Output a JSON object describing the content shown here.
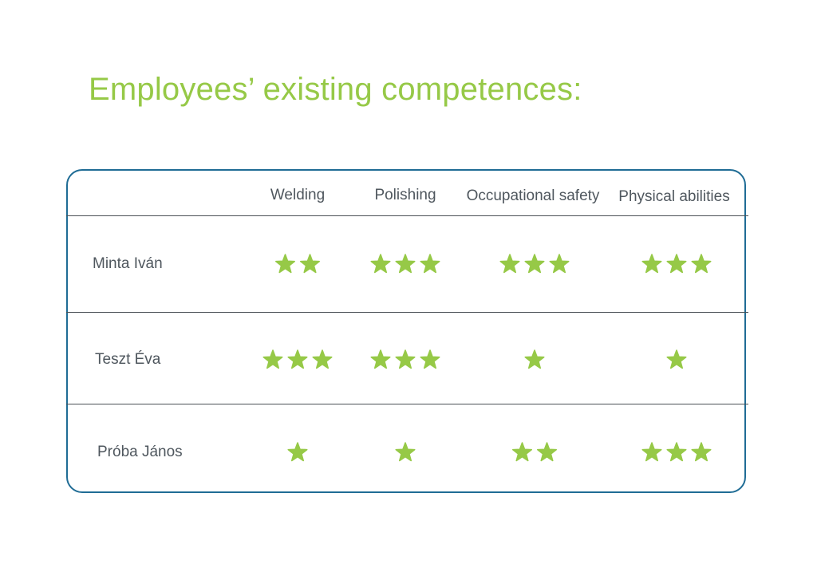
{
  "title": "Employees’ existing competences:",
  "star_color": "#96c947",
  "frame_color": "#1f6c95",
  "columns": [
    {
      "label": "Welding"
    },
    {
      "label": "Polishing"
    },
    {
      "label": "Occupational safety"
    },
    {
      "label": "Physical abilities"
    }
  ],
  "employees": [
    {
      "name": "Minta Iván",
      "ratings": [
        2,
        3,
        3,
        3
      ]
    },
    {
      "name": "Teszt Éva",
      "ratings": [
        3,
        3,
        1,
        1
      ]
    },
    {
      "name": "Próba János",
      "ratings": [
        1,
        1,
        2,
        3
      ]
    }
  ]
}
